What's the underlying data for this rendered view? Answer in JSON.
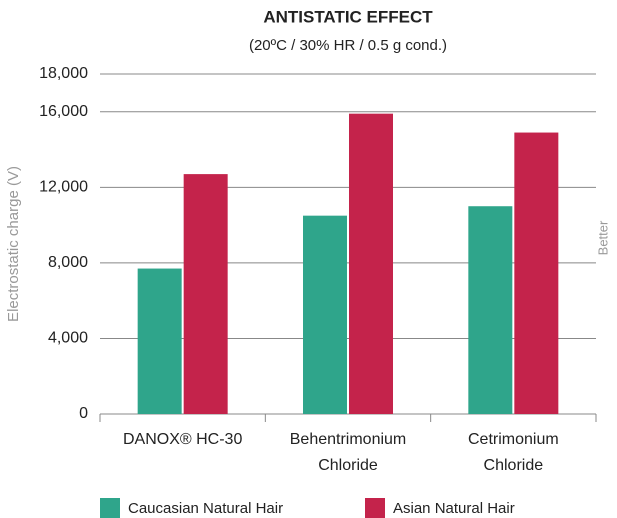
{
  "chart_data": {
    "type": "bar",
    "title": "ANTISTATIC EFFECT",
    "subtitle": "(20ºC / 30% HR / 0.5 g cond.)",
    "y_label": "Electrostatic charge (V)",
    "annotation": "Better",
    "categories": [
      "DANOX® HC-30",
      "Behentrimonium Chloride",
      "Cetrimonium Chloride"
    ],
    "series": [
      {
        "name": "Caucasian Natural Hair",
        "color": "#2fa58b",
        "values": [
          7700,
          10500,
          11000
        ]
      },
      {
        "name": "Asian Natural Hair",
        "color": "#c4234b",
        "values": [
          12700,
          15900,
          14900
        ]
      }
    ],
    "ylim": [
      0,
      18000
    ],
    "yticks": [
      {
        "value": 0,
        "label": "0"
      },
      {
        "value": 4000,
        "label": "4,000"
      },
      {
        "value": 8000,
        "label": "8,000"
      },
      {
        "value": 12000,
        "label": "12,000"
      },
      {
        "value": 16000,
        "label": "16,000"
      },
      {
        "value": 18000,
        "label": "18,000"
      }
    ],
    "grid": true
  }
}
